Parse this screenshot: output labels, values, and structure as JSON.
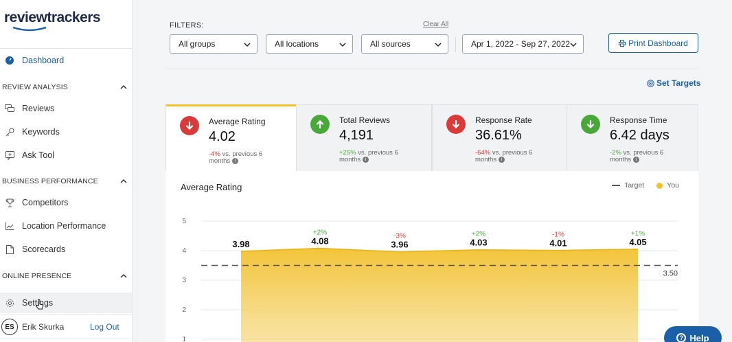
{
  "brand": {
    "name": "reviewtrackers"
  },
  "sidebar": {
    "dashboard": "Dashboard",
    "sections": [
      {
        "title": "REVIEW ANALYSIS",
        "items": [
          "Reviews",
          "Keywords",
          "Ask Tool"
        ]
      },
      {
        "title": "BUSINESS PERFORMANCE",
        "items": [
          "Competitors",
          "Location Performance",
          "Scorecards"
        ]
      },
      {
        "title": "ONLINE PRESENCE",
        "items": []
      }
    ],
    "settings": "Settings",
    "user": {
      "initials": "ES",
      "name": "Erik Skurka",
      "logout": "Log Out"
    }
  },
  "filters": {
    "label": "FILTERS:",
    "clear_all": "Clear All",
    "groups": "All groups",
    "locations": "All locations",
    "sources": "All sources",
    "date_range": "Apr 1, 2022 - Sep 27, 2022",
    "print": "Print Dashboard",
    "set_targets": "Set Targets"
  },
  "metrics": [
    {
      "title": "Average Rating",
      "value": "4.02",
      "delta": "-4%",
      "delta_text": " vs. previous 6 months",
      "trend": "down",
      "active": true
    },
    {
      "title": "Total Reviews",
      "value": "4,191",
      "delta": "+25%",
      "delta_text": " vs. previous 6 months",
      "trend": "up",
      "active": false
    },
    {
      "title": "Response Rate",
      "value": "36.61%",
      "delta": "-64%",
      "delta_text": " vs. previous 6 months",
      "trend": "down",
      "active": false
    },
    {
      "title": "Response Time",
      "value": "6.42 days",
      "delta": "-2%",
      "delta_text": " vs. previous 6 months",
      "trend": "up",
      "active": false
    }
  ],
  "chart_data": {
    "type": "area",
    "title": "Average Rating",
    "legend": [
      "Target",
      "You"
    ],
    "legend_position": "top-right",
    "y_ticks": [
      1,
      2,
      3,
      4,
      5
    ],
    "ylim": [
      1,
      5
    ],
    "target": 3.5,
    "target_label": "3.50",
    "series": [
      {
        "name": "You",
        "values": [
          3.98,
          4.08,
          3.96,
          4.03,
          4.01,
          4.05
        ],
        "labels": [
          "3.98",
          "4.08",
          "3.96",
          "4.03",
          "4.01",
          "4.05"
        ],
        "changes": [
          "",
          "+2%",
          "-3%",
          "+2%",
          "-1%",
          "+1%"
        ]
      }
    ],
    "grid": true,
    "colors": {
      "fill": "#f2c12e",
      "target": "#555555",
      "positive": "#4aa83b",
      "negative": "#d93a3a"
    }
  },
  "help": {
    "label": "Help"
  }
}
